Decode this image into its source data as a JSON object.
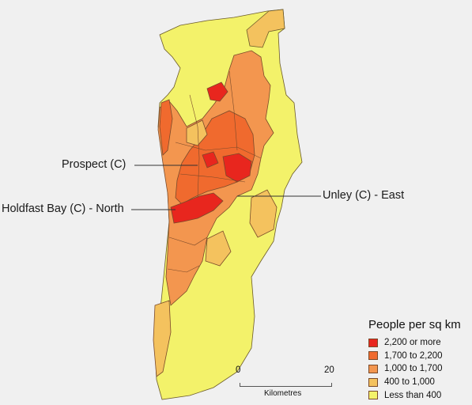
{
  "callouts": {
    "prospect": "Prospect (C)",
    "holdfast": "Holdfast Bay (C) - North",
    "unley": "Unley (C) - East"
  },
  "legend": {
    "title": "People per sq km",
    "items": [
      {
        "label": "2,200 or more",
        "color": "#e8261e"
      },
      {
        "label": "1,700 to 2,200",
        "color": "#f06a2e"
      },
      {
        "label": "1,000 to 1,700",
        "color": "#f3964f"
      },
      {
        "label": "400 to 1,000",
        "color": "#f4c25e"
      },
      {
        "label": "Less than 400",
        "color": "#f3f26a"
      }
    ]
  },
  "scale_bar": {
    "min": "0",
    "max": "20",
    "unit": "Kilometres"
  },
  "colors": {
    "background": "#f0f0f0",
    "class_2200_plus": "#e8261e",
    "class_1700_2200": "#f06a2e",
    "class_1000_1700": "#f3964f",
    "class_400_1000": "#f4c25e",
    "class_under_400": "#f3f26a",
    "boundary": "#7a4a2a"
  }
}
